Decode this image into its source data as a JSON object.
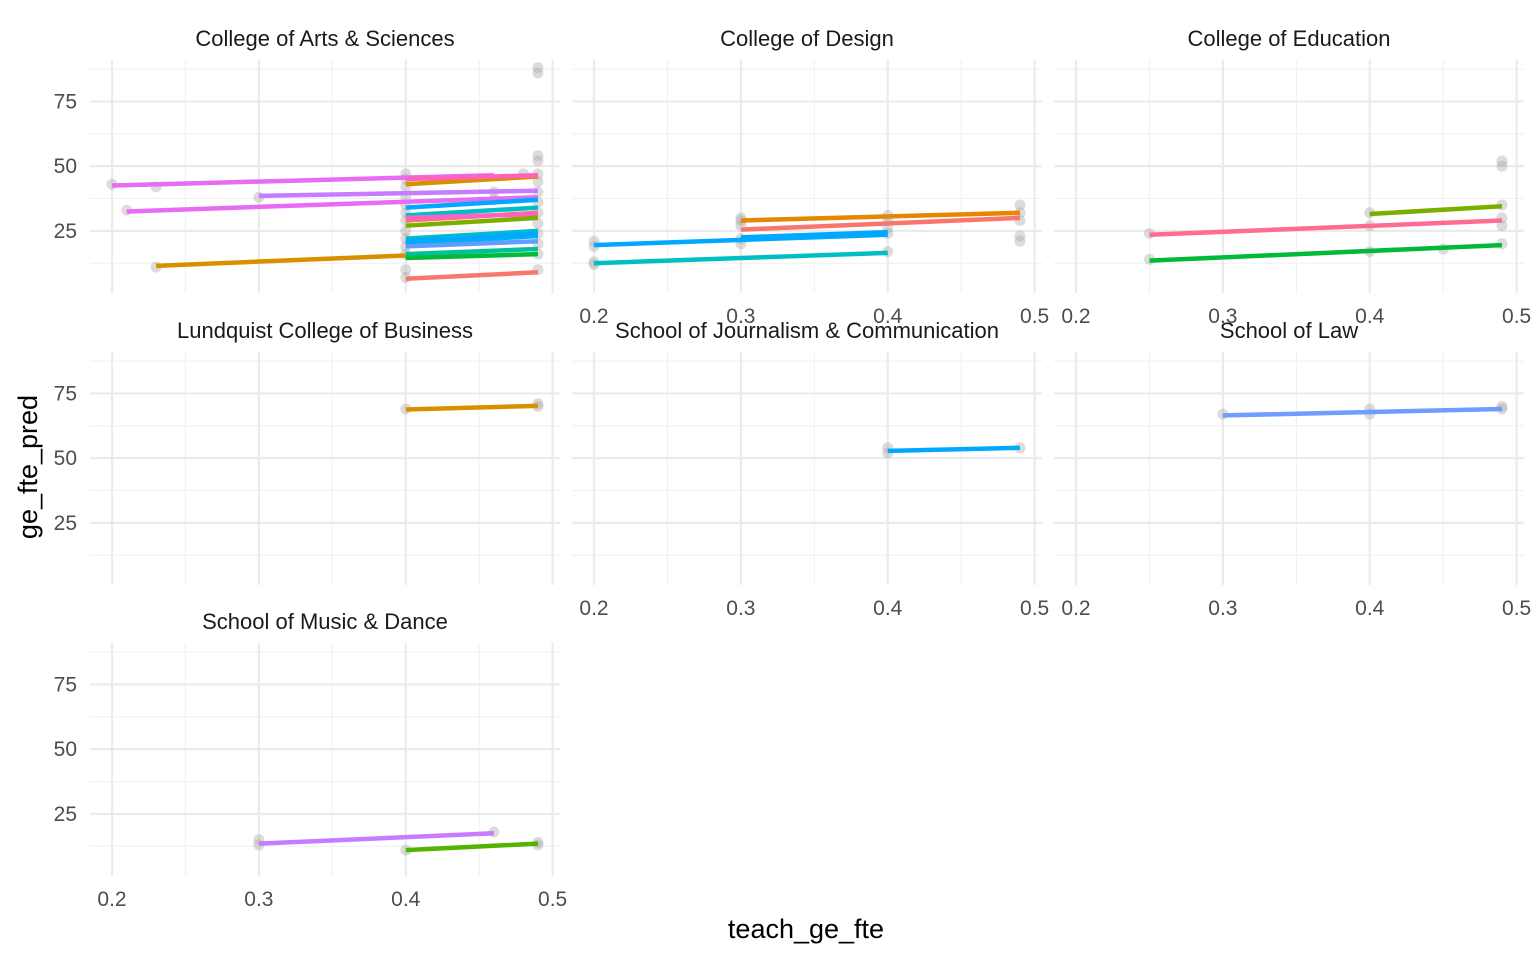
{
  "chart_data": {
    "type": "line",
    "xlabel": "teach_ge_fte",
    "ylabel": "ge_fte_pred",
    "xlim": [
      0.185,
      0.505
    ],
    "ylim": [
      1,
      91
    ],
    "x_ticks": [
      0.2,
      0.3,
      0.4,
      0.5
    ],
    "y_ticks": [
      25,
      50,
      75
    ],
    "grid": true,
    "legend": "none",
    "panels": [
      {
        "title": "College of Arts & Sciences",
        "show_x_ticks": false,
        "show_y_ticks": true,
        "points": [
          [
            0.2,
            43
          ],
          [
            0.23,
            42
          ],
          [
            0.21,
            33
          ],
          [
            0.23,
            11
          ],
          [
            0.3,
            38
          ],
          [
            0.4,
            47
          ],
          [
            0.4,
            45
          ],
          [
            0.4,
            42
          ],
          [
            0.4,
            38
          ],
          [
            0.4,
            35
          ],
          [
            0.4,
            32
          ],
          [
            0.4,
            29
          ],
          [
            0.4,
            25
          ],
          [
            0.4,
            22
          ],
          [
            0.4,
            19
          ],
          [
            0.4,
            16
          ],
          [
            0.4,
            10
          ],
          [
            0.4,
            7
          ],
          [
            0.46,
            40
          ],
          [
            0.46,
            37
          ],
          [
            0.47,
            32
          ],
          [
            0.48,
            47
          ],
          [
            0.49,
            88
          ],
          [
            0.49,
            86
          ],
          [
            0.49,
            54
          ],
          [
            0.49,
            52
          ],
          [
            0.49,
            47
          ],
          [
            0.49,
            44
          ],
          [
            0.49,
            40
          ],
          [
            0.49,
            36
          ],
          [
            0.49,
            32
          ],
          [
            0.49,
            28
          ],
          [
            0.49,
            24
          ],
          [
            0.49,
            20
          ],
          [
            0.49,
            16
          ],
          [
            0.49,
            10
          ]
        ],
        "series": [
          {
            "color": "#E76BF3",
            "x": [
              0.2,
              0.46
            ],
            "y": [
              42.5,
              46.5
            ]
          },
          {
            "color": "#E76BF3",
            "x": [
              0.21,
              0.49
            ],
            "y": [
              32.5,
              38
            ]
          },
          {
            "color": "#D89000",
            "x": [
              0.23,
              0.4
            ],
            "y": [
              11.5,
              15.5
            ]
          },
          {
            "color": "#C77CFF",
            "x": [
              0.3,
              0.49
            ],
            "y": [
              38.5,
              40.5
            ]
          },
          {
            "color": "#D89000",
            "x": [
              0.4,
              0.49
            ],
            "y": [
              43,
              46
            ]
          },
          {
            "color": "#FF62BC",
            "x": [
              0.4,
              0.49
            ],
            "y": [
              45,
              46.5
            ]
          },
          {
            "color": "#00A9FF",
            "x": [
              0.4,
              0.49
            ],
            "y": [
              34,
              37
            ]
          },
          {
            "color": "#00BFC4",
            "x": [
              0.4,
              0.49
            ],
            "y": [
              31,
              34
            ]
          },
          {
            "color": "#F8766D",
            "x": [
              0.4,
              0.49
            ],
            "y": [
              29,
              32
            ]
          },
          {
            "color": "#FF61C3",
            "x": [
              0.4,
              0.49
            ],
            "y": [
              30,
              31.5
            ]
          },
          {
            "color": "#7CAE00",
            "x": [
              0.4,
              0.49
            ],
            "y": [
              27,
              30
            ]
          },
          {
            "color": "#00BFC4",
            "x": [
              0.4,
              0.49
            ],
            "y": [
              22,
              25
            ]
          },
          {
            "color": "#00B0F6",
            "x": [
              0.4,
              0.49
            ],
            "y": [
              20,
              23
            ]
          },
          {
            "color": "#00A9FF",
            "x": [
              0.4,
              0.49
            ],
            "y": [
              21,
              24
            ]
          },
          {
            "color": "#619CFF",
            "x": [
              0.4,
              0.49
            ],
            "y": [
              19,
              21
            ]
          },
          {
            "color": "#00C19A",
            "x": [
              0.4,
              0.49
            ],
            "y": [
              16,
              18
            ]
          },
          {
            "color": "#00BA38",
            "x": [
              0.4,
              0.49
            ],
            "y": [
              14.5,
              16
            ]
          },
          {
            "color": "#F8766D",
            "x": [
              0.4,
              0.49
            ],
            "y": [
              6.5,
              9
            ]
          }
        ]
      },
      {
        "title": "College of Design",
        "show_x_ticks": true,
        "show_y_ticks": false,
        "points": [
          [
            0.2,
            21
          ],
          [
            0.2,
            19
          ],
          [
            0.2,
            13
          ],
          [
            0.2,
            12
          ],
          [
            0.3,
            30
          ],
          [
            0.3,
            29
          ],
          [
            0.3,
            27
          ],
          [
            0.3,
            22
          ],
          [
            0.3,
            20
          ],
          [
            0.4,
            31
          ],
          [
            0.4,
            29
          ],
          [
            0.4,
            26
          ],
          [
            0.4,
            24
          ],
          [
            0.4,
            17
          ],
          [
            0.49,
            35
          ],
          [
            0.49,
            32
          ],
          [
            0.49,
            29
          ],
          [
            0.49,
            23
          ],
          [
            0.49,
            21
          ]
        ],
        "series": [
          {
            "color": "#00A9FF",
            "x": [
              0.2,
              0.4
            ],
            "y": [
              19.5,
              23.5
            ]
          },
          {
            "color": "#00BFC4",
            "x": [
              0.2,
              0.4
            ],
            "y": [
              12.5,
              16.5
            ]
          },
          {
            "color": "#E58700",
            "x": [
              0.3,
              0.49
            ],
            "y": [
              29,
              32
            ]
          },
          {
            "color": "#F8766D",
            "x": [
              0.3,
              0.49
            ],
            "y": [
              25.5,
              30
            ]
          },
          {
            "color": "#00A9FF",
            "x": [
              0.3,
              0.4
            ],
            "y": [
              22.5,
              24.5
            ]
          }
        ]
      },
      {
        "title": "College of Education",
        "show_x_ticks": true,
        "show_y_ticks": false,
        "points": [
          [
            0.25,
            24
          ],
          [
            0.25,
            14
          ],
          [
            0.4,
            32
          ],
          [
            0.4,
            27
          ],
          [
            0.4,
            17
          ],
          [
            0.45,
            18
          ],
          [
            0.49,
            52
          ],
          [
            0.49,
            50
          ],
          [
            0.49,
            35
          ],
          [
            0.49,
            30
          ],
          [
            0.49,
            27
          ],
          [
            0.49,
            20
          ]
        ],
        "series": [
          {
            "color": "#FF6C91",
            "x": [
              0.25,
              0.49
            ],
            "y": [
              23.5,
              29
            ]
          },
          {
            "color": "#00BA38",
            "x": [
              0.25,
              0.49
            ],
            "y": [
              13.5,
              19.5
            ]
          },
          {
            "color": "#7CAE00",
            "x": [
              0.4,
              0.49
            ],
            "y": [
              31.5,
              34.5
            ]
          }
        ]
      },
      {
        "title": "Lundquist College of Business",
        "show_x_ticks": false,
        "show_y_ticks": true,
        "points": [
          [
            0.4,
            69
          ],
          [
            0.49,
            71
          ],
          [
            0.49,
            70
          ]
        ],
        "series": [
          {
            "color": "#D89000",
            "x": [
              0.4,
              0.49
            ],
            "y": [
              68.8,
              70.2
            ]
          }
        ]
      },
      {
        "title": "School of Journalism & Communication",
        "show_x_ticks": true,
        "show_y_ticks": false,
        "points": [
          [
            0.4,
            54
          ],
          [
            0.4,
            52
          ],
          [
            0.49,
            54
          ]
        ],
        "series": [
          {
            "color": "#00A9FF",
            "x": [
              0.4,
              0.49
            ],
            "y": [
              52.8,
              54
            ]
          }
        ]
      },
      {
        "title": "School of Law",
        "show_x_ticks": true,
        "show_y_ticks": false,
        "points": [
          [
            0.3,
            67
          ],
          [
            0.4,
            69
          ],
          [
            0.4,
            67
          ],
          [
            0.49,
            70
          ],
          [
            0.49,
            69
          ]
        ],
        "series": [
          {
            "color": "#6E9CFF",
            "x": [
              0.3,
              0.49
            ],
            "y": [
              66.5,
              69
            ]
          }
        ]
      },
      {
        "title": "School of Music & Dance",
        "show_x_ticks": true,
        "show_y_ticks": true,
        "points": [
          [
            0.3,
            15
          ],
          [
            0.3,
            13
          ],
          [
            0.4,
            11
          ],
          [
            0.46,
            18
          ],
          [
            0.49,
            14
          ],
          [
            0.49,
            13
          ]
        ],
        "series": [
          {
            "color": "#C77CFF",
            "x": [
              0.3,
              0.46
            ],
            "y": [
              13.5,
              17.5
            ]
          },
          {
            "color": "#53B400",
            "x": [
              0.4,
              0.49
            ],
            "y": [
              11,
              13.5
            ]
          }
        ]
      }
    ]
  }
}
